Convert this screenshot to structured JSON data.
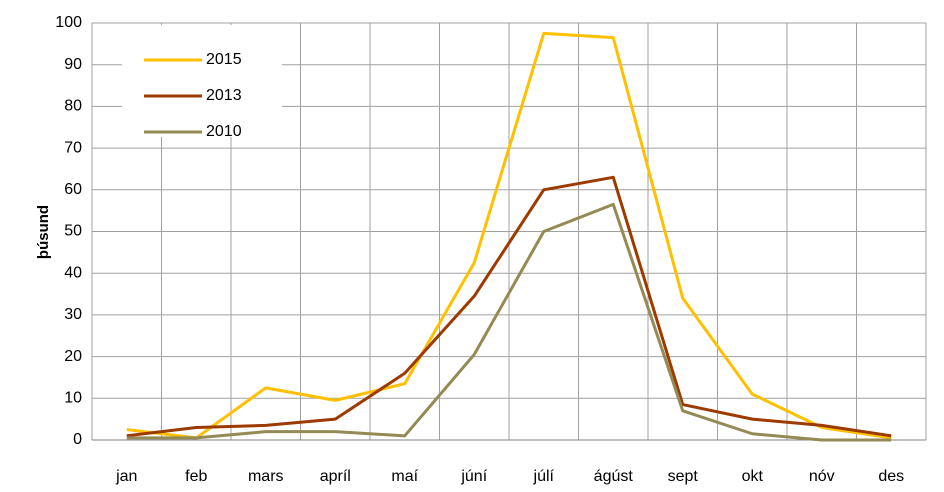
{
  "chart_data": {
    "type": "line",
    "y_label": "þúsund",
    "categories": [
      "jan",
      "feb",
      "mars",
      "apríl",
      "maí",
      "júní",
      "júlí",
      "ágúst",
      "sept",
      "okt",
      "nóv",
      "des"
    ],
    "series": [
      {
        "name": "2015",
        "color": "#ffc000",
        "values": [
          2.5,
          0.5,
          12.5,
          9.5,
          13.5,
          42.5,
          97.5,
          96.5,
          34,
          11,
          3,
          0.5
        ]
      },
      {
        "name": "2013",
        "color": "#9c3a00",
        "values": [
          1,
          3,
          3.5,
          5,
          16,
          34.5,
          60,
          63,
          8.5,
          5,
          3.5,
          1
        ]
      },
      {
        "name": "2010",
        "color": "#948a54",
        "values": [
          0.5,
          0.5,
          2,
          2,
          1,
          20.5,
          50,
          56.5,
          7,
          1.5,
          0,
          0
        ]
      }
    ],
    "ylim": [
      0,
      100
    ],
    "yticks": [
      0,
      10,
      20,
      30,
      40,
      50,
      60,
      70,
      80,
      90,
      100
    ],
    "grid": true,
    "legend": "upper-left"
  }
}
